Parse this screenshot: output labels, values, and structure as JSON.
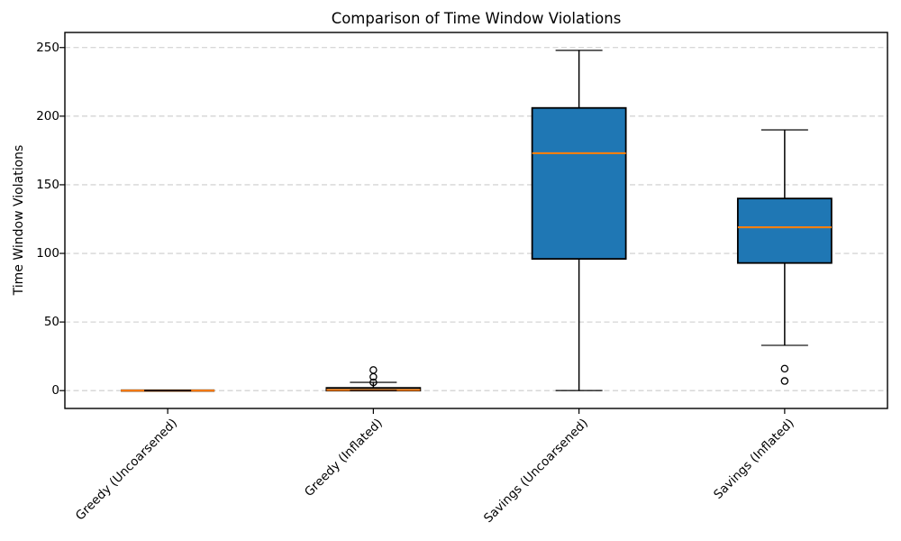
{
  "chart_data": {
    "type": "box",
    "title": "Comparison of Time Window Violations",
    "ylabel": "Time Window Violations",
    "xlabel": "",
    "categories": [
      "Greedy (Uncoarsened)",
      "Greedy (Inflated)",
      "Savings (Uncoarsened)",
      "Savings (Inflated)"
    ],
    "boxes": [
      {
        "label": "Greedy (Uncoarsened)",
        "whislo": 0,
        "q1": 0,
        "med": 0,
        "q3": 0,
        "whishi": 0,
        "fliers": []
      },
      {
        "label": "Greedy (Inflated)",
        "whislo": 0,
        "q1": 0,
        "med": 0.5,
        "q3": 2,
        "whishi": 6,
        "fliers": [
          6,
          10,
          15
        ]
      },
      {
        "label": "Savings (Uncoarsened)",
        "whislo": 0,
        "q1": 96,
        "med": 173,
        "q3": 206,
        "whishi": 248,
        "fliers": []
      },
      {
        "label": "Savings (Inflated)",
        "whislo": 33,
        "q1": 93,
        "med": 119,
        "q3": 140,
        "whishi": 190,
        "fliers": [
          16,
          7
        ]
      }
    ],
    "yticks": [
      0,
      50,
      100,
      150,
      200,
      250
    ],
    "ylim": [
      -13,
      261
    ],
    "grid": "horizontal-dashed",
    "legend_position": "none",
    "colors": {
      "box_fill": "#1f77b4",
      "median": "#ff7f0e",
      "edge": "#000000",
      "grid": "#cccccc",
      "background": "#ffffff"
    }
  }
}
